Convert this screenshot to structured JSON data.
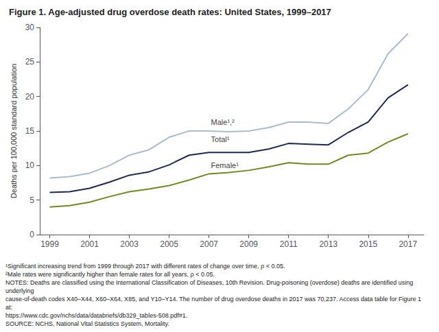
{
  "chart_data": {
    "type": "line",
    "title": "Figure 1. Age-adjusted drug overdose death rates: United States, 1999–2017",
    "ylabel": "Deaths per 100,000 standard population",
    "x": [
      1999,
      2000,
      2001,
      2002,
      2003,
      2004,
      2005,
      2006,
      2007,
      2008,
      2009,
      2010,
      2011,
      2012,
      2013,
      2014,
      2015,
      2016,
      2017
    ],
    "series": [
      {
        "name": "Male¹,²",
        "color": "#a9bccb",
        "values": [
          8.2,
          8.4,
          8.9,
          10.0,
          11.5,
          12.3,
          14.1,
          15.0,
          15.0,
          14.9,
          15.0,
          15.5,
          16.3,
          16.3,
          16.1,
          18.2,
          21.0,
          26.2,
          29.1
        ]
      },
      {
        "name": "Total¹",
        "color": "#1b2a52",
        "values": [
          6.1,
          6.2,
          6.7,
          7.6,
          8.6,
          9.1,
          10.1,
          11.5,
          11.9,
          11.9,
          11.9,
          12.4,
          13.2,
          13.1,
          13.0,
          14.8,
          16.3,
          19.8,
          21.7
        ]
      },
      {
        "name": "Female¹",
        "color": "#6b8c21",
        "values": [
          4.0,
          4.2,
          4.7,
          5.5,
          6.2,
          6.6,
          7.1,
          7.9,
          8.8,
          9.0,
          9.3,
          9.8,
          10.4,
          10.2,
          10.2,
          11.5,
          11.8,
          13.4,
          14.6
        ]
      }
    ],
    "annotations": [
      {
        "text": "Male¹,²",
        "x": 2007.1,
        "y": 15.7
      },
      {
        "text": "Total¹",
        "x": 2007.1,
        "y": 13.3
      },
      {
        "text": "Female¹",
        "x": 2007.1,
        "y": 9.5
      }
    ],
    "footnotes": [
      "¹Significant increasing trend from 1999 through 2017 with different rates of change over time, ρ < 0.05.",
      "²Male rates were significantly higher than female rates for all years, ρ < 0.05.",
      "NOTES: Deaths are classified using the International Classification of Diseases, 10th Revision. Drug-poisoning (overdose) deaths are identified using underlying",
      "cause-of-death codes X40–X44, X60–X64, X85, and Y10–Y14. The number of drug overdose deaths in 2017 was 70,237. Access data table for Figure 1 at:",
      "https://www.cdc.gov/nchs/data/databriefs/db329_tables-508.pdf#1.",
      "SOURCE: NCHS, National Vital Statistics System, Mortality."
    ],
    "xlim": [
      1998.5,
      2017.8
    ],
    "xticks": [
      1999,
      2001,
      2003,
      2005,
      2007,
      2009,
      2011,
      2013,
      2015,
      2017
    ],
    "ylim": [
      0,
      30
    ],
    "yticks": [
      0,
      5,
      10,
      15,
      20,
      25,
      30
    ],
    "grid": false
  }
}
